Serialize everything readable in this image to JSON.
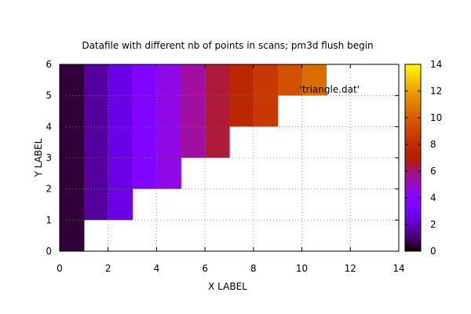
{
  "chart_data": {
    "type": "heatmap",
    "title": "Datafile with different nb of points in scans; pm3d flush begin",
    "xlabel": "X LABEL",
    "ylabel": "Y LABEL",
    "xlim": [
      0,
      14
    ],
    "ylim": [
      0,
      6
    ],
    "xticks": [
      0,
      2,
      4,
      6,
      8,
      10,
      12,
      14
    ],
    "yticks": [
      0,
      1,
      2,
      3,
      4,
      5,
      6
    ],
    "grid": true,
    "legend": {
      "label": "'triangle.dat'",
      "placement": "top-right"
    },
    "colorbar": {
      "range": [
        0,
        14
      ],
      "ticks": [
        0,
        2,
        4,
        6,
        8,
        10,
        12,
        14
      ],
      "palette": "gnuplot default (black-blue-magenta-red-yellow)"
    },
    "cells": [
      {
        "x": [
          0,
          1
        ],
        "y": [
          0,
          6
        ],
        "value": 0.5
      },
      {
        "x": [
          1,
          2
        ],
        "y": [
          1,
          6
        ],
        "value": 1.5
      },
      {
        "x": [
          2,
          3
        ],
        "y": [
          1,
          6
        ],
        "value": 2.5
      },
      {
        "x": [
          3,
          4
        ],
        "y": [
          2,
          6
        ],
        "value": 3.5
      },
      {
        "x": [
          4,
          5
        ],
        "y": [
          2,
          6
        ],
        "value": 4.5
      },
      {
        "x": [
          5,
          6
        ],
        "y": [
          3,
          6
        ],
        "value": 5.5
      },
      {
        "x": [
          6,
          7
        ],
        "y": [
          3,
          6
        ],
        "value": 6.5
      },
      {
        "x": [
          7,
          8
        ],
        "y": [
          4,
          6
        ],
        "value": 7.5
      },
      {
        "x": [
          8,
          9
        ],
        "y": [
          4,
          6
        ],
        "value": 8.5
      },
      {
        "x": [
          9,
          10
        ],
        "y": [
          5,
          6
        ],
        "value": 9.5
      },
      {
        "x": [
          10,
          11
        ],
        "y": [
          5,
          6
        ],
        "value": 10.5
      }
    ]
  }
}
